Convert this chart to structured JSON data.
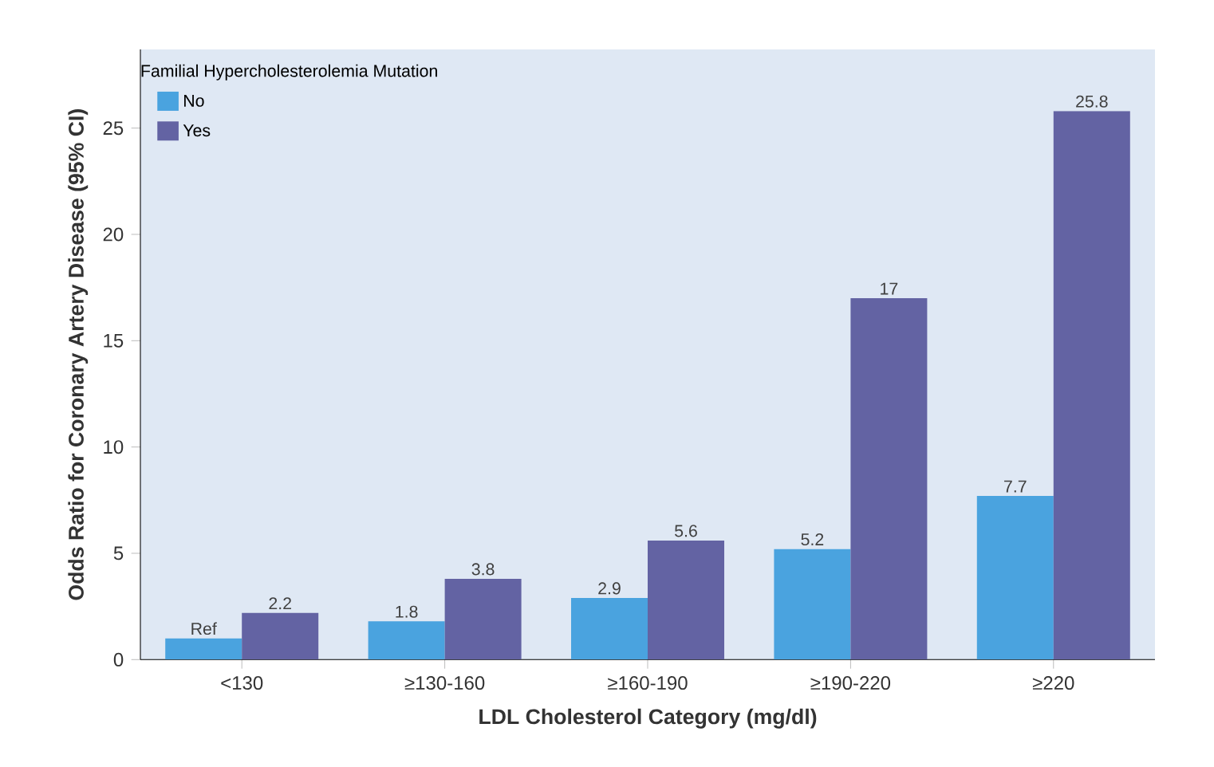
{
  "chart_data": {
    "type": "bar",
    "xlabel": "LDL Cholesterol Category (mg/dl)",
    "ylabel": "Odds Ratio for Coronary Artery Disease (95% CI)",
    "legend_title": "Familial Hypercholesterolemia Mutation",
    "categories": [
      "<130",
      "≥130-160",
      "≥160-190",
      "≥190-220",
      "≥220"
    ],
    "series": [
      {
        "name": "No",
        "color": "#4aa3df",
        "values": [
          1,
          1.8,
          2.9,
          5.2,
          7.7
        ],
        "value_labels": [
          "Ref",
          "1.8",
          "2.9",
          "5.2",
          "7.7"
        ]
      },
      {
        "name": "Yes",
        "color": "#6363a3",
        "values": [
          2.2,
          3.8,
          5.6,
          17,
          25.8
        ],
        "value_labels": [
          "2.2",
          "3.8",
          "5.6",
          "17",
          "25.8"
        ]
      }
    ],
    "ylim": [
      0,
      28.7
    ],
    "yticks": [
      0,
      5,
      10,
      15,
      20,
      25
    ],
    "legend": "top left",
    "grid": false
  }
}
